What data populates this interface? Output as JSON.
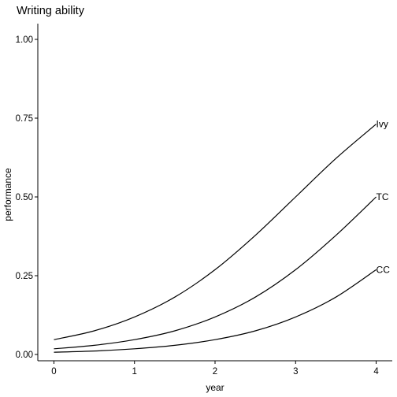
{
  "chart_data": {
    "type": "line",
    "title": "Writing ability",
    "xlabel": "year",
    "ylabel": "performance",
    "xlim": [
      -0.2,
      4.2
    ],
    "ylim": [
      -0.02,
      1.05
    ],
    "x_ticks": [
      0,
      1,
      2,
      3,
      4
    ],
    "y_ticks": [
      0.0,
      0.25,
      0.5,
      0.75,
      1.0
    ],
    "x_tick_labels": [
      "0",
      "1",
      "2",
      "3",
      "4"
    ],
    "y_tick_labels": [
      "0.00",
      "0.25",
      "0.50",
      "0.75",
      "1.00"
    ],
    "grid": false,
    "legend": "none",
    "x": [
      0,
      0.5,
      1,
      1.5,
      2,
      2.5,
      3,
      3.5,
      4
    ],
    "series": [
      {
        "name": "Ivy",
        "values": [
          0.047,
          0.075,
          0.119,
          0.182,
          0.269,
          0.378,
          0.5,
          0.622,
          0.731
        ]
      },
      {
        "name": "TC",
        "values": [
          0.018,
          0.029,
          0.047,
          0.075,
          0.119,
          0.182,
          0.269,
          0.378,
          0.5
        ]
      },
      {
        "name": "CC",
        "values": [
          0.007,
          0.011,
          0.018,
          0.029,
          0.047,
          0.075,
          0.119,
          0.182,
          0.269
        ]
      }
    ]
  }
}
